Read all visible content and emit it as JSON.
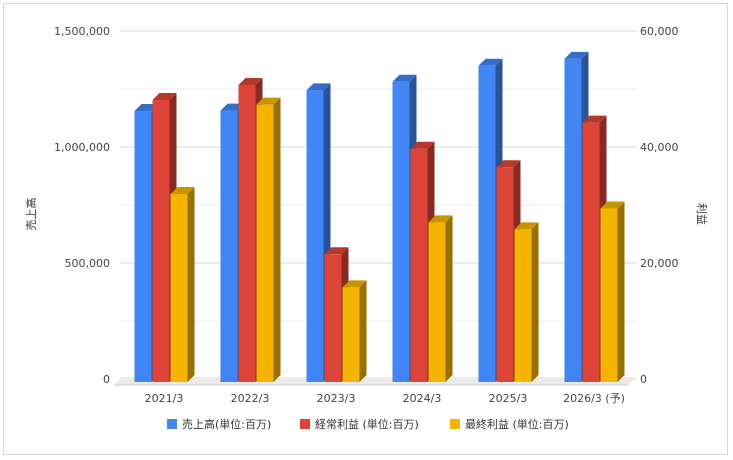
{
  "chart_data": {
    "type": "bar",
    "style": "3d-clustered-column",
    "categories": [
      "2021/3",
      "2022/3",
      "2023/3",
      "2024/3",
      "2025/3",
      "2026/3 (予)"
    ],
    "series": [
      {
        "name": "売上高(単位:百万)",
        "axis": "left",
        "color": "#4285f4",
        "values": [
          1155000,
          1157000,
          1244000,
          1281000,
          1350000,
          1380000
        ]
      },
      {
        "name": "経常利益 (単位:百万)",
        "axis": "right",
        "color": "#db4437",
        "values": [
          48100,
          50700,
          21500,
          39700,
          36500,
          44200
        ]
      },
      {
        "name": "最終利益 (単位:百万)",
        "axis": "right",
        "color": "#f4b400",
        "values": [
          31900,
          47300,
          15800,
          27000,
          25800,
          29400
        ]
      }
    ],
    "y_left": {
      "label": "売上高",
      "ylim": [
        0,
        1500000
      ],
      "ticks": [
        0,
        500000,
        1000000,
        1500000
      ],
      "tick_labels": [
        "0",
        "500,000",
        "1,000,000",
        "1,500,000"
      ]
    },
    "y_right": {
      "label": "利益",
      "ylim": [
        0,
        60000
      ],
      "ticks": [
        0,
        20000,
        40000,
        60000
      ],
      "tick_labels": [
        "0",
        "20,000",
        "40,000",
        "60,000"
      ]
    },
    "grid": true,
    "legend_position": "bottom"
  }
}
